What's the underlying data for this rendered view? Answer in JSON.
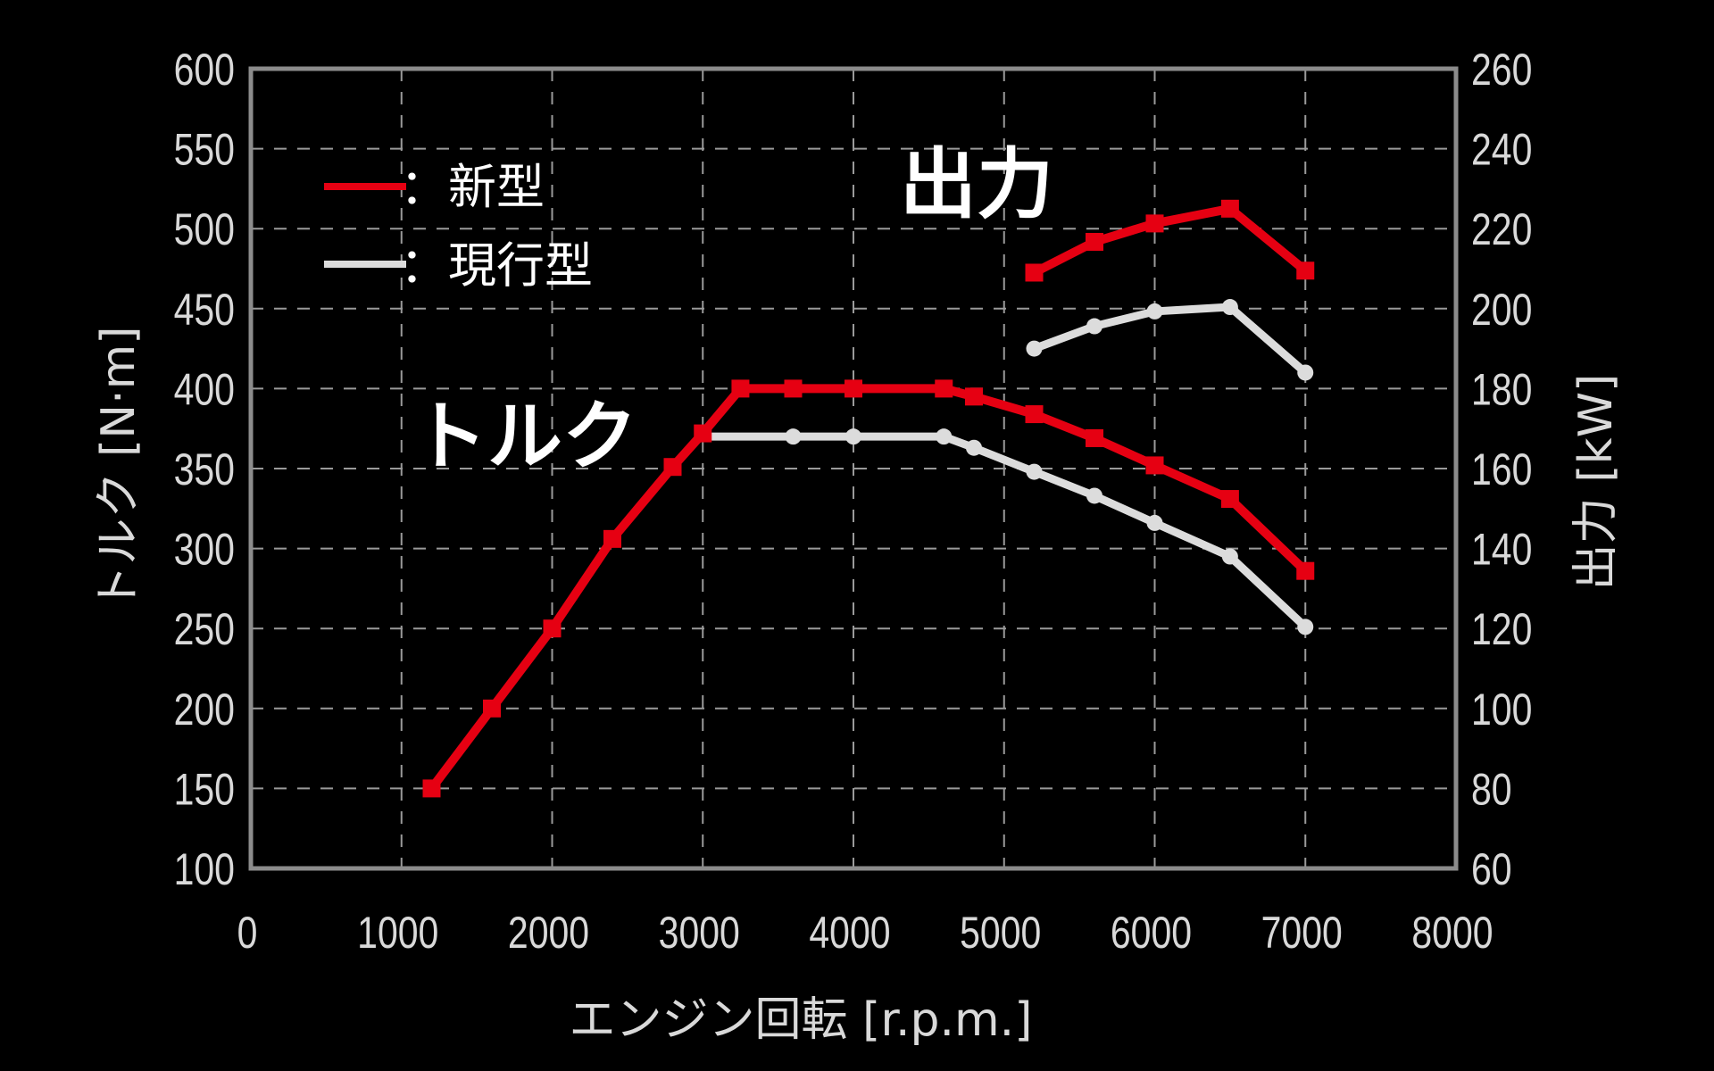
{
  "chart_data": {
    "type": "line",
    "title": "",
    "xlabel": "エンジン回転 [r.p.m.]",
    "ylabel_left": "トルク [N·m]",
    "ylabel_right": "出力 [kW]",
    "xlim": [
      0,
      8000
    ],
    "ylim_left": [
      100,
      600
    ],
    "ylim_right": [
      60,
      260
    ],
    "x_ticks": [
      0,
      1000,
      2000,
      3000,
      4000,
      5000,
      6000,
      7000,
      8000
    ],
    "y_ticks_left": [
      100,
      150,
      200,
      250,
      300,
      350,
      400,
      450,
      500,
      550,
      600
    ],
    "y_ticks_right": [
      60,
      80,
      100,
      120,
      140,
      160,
      180,
      200,
      220,
      240,
      260
    ],
    "grid": true,
    "legend": {
      "position": "upper-left",
      "entries": [
        {
          "label": "：新型",
          "color": "#e60012",
          "marker": "square"
        },
        {
          "label": "：現行型",
          "color": "#dcdcdc",
          "marker": "circle"
        }
      ]
    },
    "annotations": [
      {
        "text": "出力",
        "x": 5450,
        "y_left": 510
      },
      {
        "text": "トルク",
        "x": 1150,
        "y_left": 365
      }
    ],
    "series": [
      {
        "name": "新型 トルク",
        "axis": "left",
        "color": "#e60012",
        "marker": "square",
        "x": [
          1200,
          1600,
          2000,
          2400,
          2800,
          3000,
          3250,
          3600,
          4000,
          4600,
          4800,
          5200,
          5600,
          6000,
          6500,
          7000
        ],
        "values": [
          150,
          200,
          250,
          306,
          351,
          372,
          400,
          400,
          400,
          400,
          395,
          384,
          369,
          352,
          331,
          286
        ]
      },
      {
        "name": "現行型 トルク",
        "axis": "left",
        "color": "#dcdcdc",
        "marker": "circle",
        "x": [
          3000,
          3600,
          4000,
          4600,
          4800,
          5200,
          5600,
          6000,
          6500,
          7000
        ],
        "values": [
          370,
          370,
          370,
          370,
          363,
          348,
          333,
          316,
          295,
          251
        ],
        "hidden_markers": [
          0
        ]
      },
      {
        "name": "新型 出力",
        "axis": "right",
        "color": "#e60012",
        "marker": "square",
        "x": [
          5200,
          5600,
          6000,
          6500,
          7000
        ],
        "values": [
          209,
          216.7,
          221.3,
          225,
          209.5
        ]
      },
      {
        "name": "現行型 出力",
        "axis": "right",
        "color": "#dcdcdc",
        "marker": "circle",
        "x": [
          5200,
          5600,
          6000,
          6500,
          7000
        ],
        "values": [
          190,
          195.6,
          199.3,
          200.4,
          184
        ]
      }
    ]
  },
  "labels": {
    "x_title": "エンジン回転 [r.p.m.]",
    "y_left_title": "トルク [N·m]",
    "y_right_title": "出力 [kW]",
    "annot_power": "出力",
    "annot_torque": "トルク",
    "legend_new": "：新型",
    "legend_current": "：現行型"
  },
  "colors": {
    "background": "#000000",
    "new_model": "#e60012",
    "current_model": "#dcdcdc",
    "grid": "#9a9a9a",
    "frame": "#8c8c8c",
    "tick_text": "#d9d9d9"
  }
}
